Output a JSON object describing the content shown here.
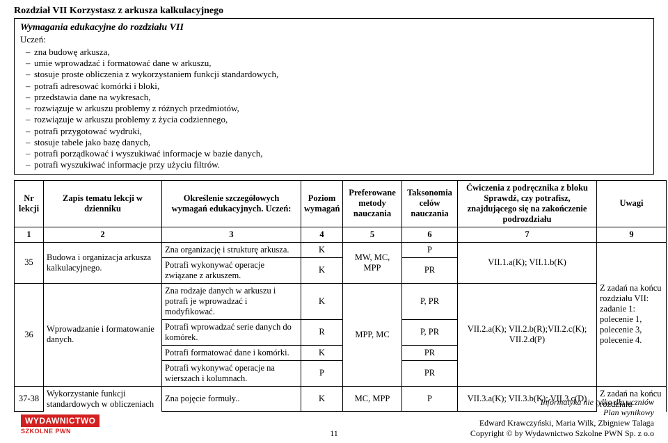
{
  "section_title": "Rozdział VII  Korzystasz z arkusza kalkulacyjnego",
  "requirements": {
    "title": "Wymagania edukacyjne do rozdziału VII",
    "subtitle": "Uczeń:",
    "items": [
      "zna budowę arkusza,",
      "umie wprowadzać i formatować dane w arkuszu,",
      "stosuje proste obliczenia z wykorzystaniem funkcji standardowych,",
      "potrafi adresować komórki i bloki,",
      "przedstawia dane na wykresach,",
      "rozwiązuje w arkuszu problemy z różnych przedmiotów,",
      "rozwiązuje w arkuszu problemy z życia codziennego,",
      "potrafi przygotować wydruki,",
      "stosuje tabele jako bazę danych,",
      "potrafi porządkować i wyszukiwać informacje w bazie danych,",
      "potrafi wyszukiwać informacje przy użyciu filtrów."
    ]
  },
  "table": {
    "headers": {
      "nr": "Nr lekcji",
      "topic": "Zapis tematu lekcji w dzienniku",
      "detail": "Określenie szczegółowych wymagań edukacyjnych. Uczeń:",
      "level": "Poziom wymagań",
      "methods": "Preferowane metody nauczania",
      "tax": "Taksonomia celów nauczania",
      "ex": "Ćwiczenia z podręcznika z bloku Sprawdź, czy potrafisz, znajdującego się na zakończenie podrozdziału",
      "notes": "Uwagi"
    },
    "num_row": {
      "c1": "1",
      "c2": "2",
      "c3": "3",
      "c4": "4",
      "c5": "5",
      "c6": "6",
      "c7": "7",
      "c8": "9"
    },
    "rows": [
      {
        "nr": "35",
        "topic": "Budowa i organizacja arkusza kalkulacyjnego.",
        "details": [
          {
            "text": "Zna organizację i strukturę arkusza.",
            "level": "K",
            "tax": "P"
          },
          {
            "text": "Potrafi wykonywać operacje związane z arkuszem.",
            "level": "K",
            "tax": "PR"
          }
        ],
        "methods": "MW, MC, MPP",
        "ex": "VII.1.a(K); VII.1.b(K)",
        "notes": ""
      },
      {
        "nr": "36",
        "topic": "Wprowadzanie i formatowanie danych.",
        "details": [
          {
            "text": "Zna rodzaje danych w arkuszu i potrafi je wprowadzać i modyfikować.",
            "level": "K",
            "tax": "P, PR"
          },
          {
            "text": "Potrafi wprowadzać serie danych do komórek.",
            "level": "R",
            "tax": "P, PR"
          },
          {
            "text": "Potrafi formatować dane i komórki.",
            "level": "K",
            "tax": "PR"
          },
          {
            "text": "Potrafi wykonywać operacje na wierszach i kolumnach.",
            "level": "P",
            "tax": "PR"
          }
        ],
        "methods": "MPP, MC",
        "ex": "VII.2.a(K); VII.2.b(R);VII.2.c(K); VII.2.d(P)",
        "notes": "Z zadań na końcu rozdziału VII: zadanie 1: polecenie 1, polecenie 3, polecenie 4."
      },
      {
        "nr": "37-38",
        "topic": "Wykorzystanie funkcji standardowych w obliczeniach",
        "details": [
          {
            "text": "Zna pojęcie formuły..",
            "level": "K",
            "tax": "P"
          }
        ],
        "methods": "MC, MPP",
        "ex": "VII.3.a(K); VII.3.b(K); VII.3.c(D)",
        "notes": "Z zadań na końcu rozdziału"
      }
    ]
  },
  "footer": {
    "line1": "Informatyka nie tylko dla uczniów",
    "line2": "Plan wynikowy",
    "line3": "Edward Krawczyński, Maria Wilk, Zbigniew Talaga",
    "line4": "Copyright © by Wydawnictwo Szkolne PWN Sp. z o.o"
  },
  "page_number": "11",
  "logo": {
    "brand": "WYDAWNICTWO",
    "sub": "SZKOLNE PWN"
  }
}
